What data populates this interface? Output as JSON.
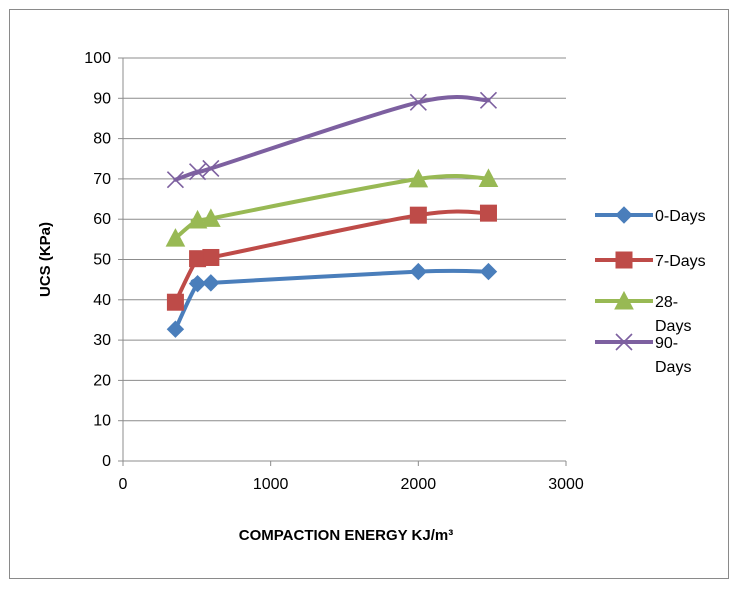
{
  "chart_data": {
    "type": "line",
    "title": "",
    "xlabel": "COMPACTION ENERGY KJ/m³",
    "ylabel": "UCS (KPa)",
    "xlim": [
      0,
      3000
    ],
    "ylim": [
      0,
      100
    ],
    "x_ticks": [
      0,
      1000,
      2000,
      3000
    ],
    "y_ticks": [
      0,
      10,
      20,
      30,
      40,
      50,
      60,
      70,
      80,
      90,
      100
    ],
    "grid": "horizontal major gridlines",
    "legend_position": "right",
    "smooth": true,
    "series": [
      {
        "name": "0-Days",
        "legend_lines": [
          "0-Days"
        ],
        "color": "#4a7ebb",
        "marker": "diamond",
        "x": [
          355,
          505,
          595,
          2000,
          2475
        ],
        "y": [
          32.7,
          44,
          44.2,
          47,
          47
        ]
      },
      {
        "name": "7-Days",
        "legend_lines": [
          "7-Days"
        ],
        "color": "#be4b48",
        "marker": "square",
        "x": [
          355,
          505,
          595,
          2000,
          2475
        ],
        "y": [
          39.4,
          50.2,
          50.5,
          61,
          61.5
        ]
      },
      {
        "name": "28-Days",
        "legend_lines": [
          "28-",
          "Days"
        ],
        "color": "#98b954",
        "marker": "triangle",
        "x": [
          355,
          505,
          595,
          2000,
          2475
        ],
        "y": [
          55.3,
          59.8,
          60.2,
          70,
          70.1
        ]
      },
      {
        "name": "90-Days",
        "legend_lines": [
          "90-",
          "Days"
        ],
        "color": "#7d60a0",
        "marker": "x",
        "x": [
          355,
          505,
          595,
          2000,
          2475
        ],
        "y": [
          69.8,
          71.8,
          72.6,
          89,
          89.5
        ]
      }
    ]
  }
}
